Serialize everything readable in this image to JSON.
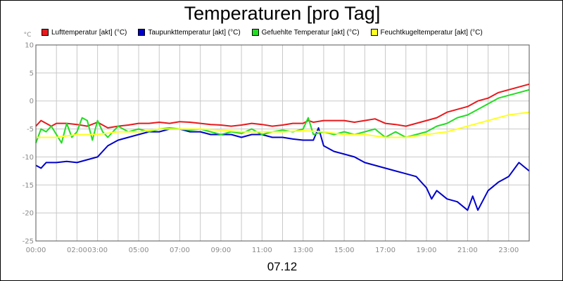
{
  "chart_data": {
    "type": "line",
    "title": "Temperaturen [pro Tag]",
    "date_label": "07.12",
    "y_unit": "°C",
    "ylim": [
      -25,
      10
    ],
    "yticks": [
      10,
      5,
      0,
      -5,
      -10,
      -15,
      -20,
      -25
    ],
    "xlim": [
      0,
      24
    ],
    "x_ticks": [
      {
        "label": "00:00",
        "x": 0
      },
      {
        "label": "02:00",
        "x": 2
      },
      {
        "label": "03:00",
        "x": 3
      },
      {
        "label": "05:00",
        "x": 5
      },
      {
        "label": "07:00",
        "x": 7
      },
      {
        "label": "09:00",
        "x": 9
      },
      {
        "label": "11:00",
        "x": 11
      },
      {
        "label": "13:00",
        "x": 13
      },
      {
        "label": "15:00",
        "x": 15
      },
      {
        "label": "17:00",
        "x": 17
      },
      {
        "label": "19:00",
        "x": 19
      },
      {
        "label": "21:00",
        "x": 21
      },
      {
        "label": "23:00",
        "x": 23
      }
    ],
    "grid": true,
    "legend": "top",
    "series": [
      {
        "name": "Lufttemperatur [akt] (°C)",
        "color": "#e8191c",
        "x": [
          0,
          0.25,
          0.5,
          0.75,
          1,
          1.5,
          2,
          2.5,
          3,
          3.5,
          4,
          4.5,
          5,
          5.5,
          6,
          6.5,
          7,
          7.5,
          8,
          8.5,
          9,
          9.5,
          10,
          10.5,
          11,
          11.5,
          12,
          12.5,
          13,
          13.25,
          13.5,
          14,
          14.5,
          15,
          15.5,
          16,
          16.5,
          17,
          17.5,
          18,
          18.5,
          19,
          19.5,
          20,
          20.5,
          21,
          21.5,
          22,
          22.5,
          23,
          23.5,
          24
        ],
        "values": [
          -4.5,
          -3.5,
          -4.0,
          -4.5,
          -4.0,
          -4.0,
          -4.2,
          -4.5,
          -3.8,
          -4.8,
          -4.5,
          -4.3,
          -4.0,
          -4.0,
          -3.8,
          -4.0,
          -3.7,
          -3.8,
          -4.0,
          -4.2,
          -4.3,
          -4.5,
          -4.3,
          -4.0,
          -4.2,
          -4.5,
          -4.3,
          -4.0,
          -4.0,
          -3.5,
          -3.8,
          -3.5,
          -3.5,
          -3.5,
          -3.8,
          -3.5,
          -3.2,
          -4.0,
          -4.2,
          -4.5,
          -4.0,
          -3.5,
          -3.0,
          -2.0,
          -1.5,
          -1.0,
          0.0,
          0.5,
          1.5,
          2.0,
          2.5,
          3.0
        ]
      },
      {
        "name": "Taupunkttemperatur [akt] (°C)",
        "color": "#0000cc",
        "x": [
          0,
          0.25,
          0.5,
          1,
          1.5,
          2,
          2.5,
          3,
          3.5,
          3.75,
          4,
          4.5,
          5,
          5.5,
          6,
          6.5,
          7,
          7.5,
          8,
          8.5,
          9,
          9.5,
          10,
          10.5,
          11,
          11.5,
          12,
          12.5,
          13,
          13.5,
          13.75,
          14,
          14.5,
          15,
          15.5,
          16,
          16.5,
          17,
          17.5,
          18,
          18.5,
          19,
          19.25,
          19.5,
          20,
          20.5,
          21,
          21.25,
          21.5,
          22,
          22.5,
          23,
          23.5,
          24
        ],
        "values": [
          -11.5,
          -12.0,
          -11.0,
          -11.0,
          -10.8,
          -11.0,
          -10.5,
          -10.0,
          -8.0,
          -7.5,
          -7.0,
          -6.5,
          -6.0,
          -5.5,
          -5.5,
          -5.0,
          -5.0,
          -5.5,
          -5.5,
          -6.0,
          -6.0,
          -6.0,
          -6.5,
          -6.0,
          -6.0,
          -6.5,
          -6.5,
          -6.8,
          -7.0,
          -7.0,
          -4.8,
          -8.0,
          -9.0,
          -9.5,
          -10.0,
          -11.0,
          -11.5,
          -12.0,
          -12.5,
          -13.0,
          -13.5,
          -15.5,
          -17.5,
          -16.0,
          -17.5,
          -18.0,
          -19.5,
          -17.0,
          -19.5,
          -16.0,
          -14.5,
          -13.5,
          -11.0,
          -12.5
        ]
      },
      {
        "name": "Gefuehlte Temperatur [akt] (°C)",
        "color": "#22dd22",
        "x": [
          0,
          0.25,
          0.5,
          0.75,
          1,
          1.25,
          1.5,
          1.75,
          2,
          2.25,
          2.5,
          2.75,
          3,
          3.25,
          3.5,
          4,
          4.5,
          5,
          5.5,
          6,
          6.5,
          7,
          7.5,
          8,
          8.5,
          9,
          9.5,
          10,
          10.5,
          11,
          11.5,
          12,
          12.5,
          13,
          13.25,
          13.5,
          14,
          14.5,
          15,
          15.5,
          16,
          16.5,
          17,
          17.5,
          18,
          18.5,
          19,
          19.5,
          20,
          20.5,
          21,
          21.5,
          22,
          22.5,
          23,
          23.5,
          24
        ],
        "values": [
          -7.5,
          -5.0,
          -5.5,
          -4.5,
          -6.0,
          -7.5,
          -4.0,
          -6.5,
          -5.5,
          -3.0,
          -3.5,
          -7.0,
          -3.5,
          -5.5,
          -6.5,
          -4.5,
          -5.5,
          -5.0,
          -5.5,
          -5.0,
          -4.8,
          -5.0,
          -5.2,
          -5.0,
          -5.5,
          -6.0,
          -5.5,
          -5.8,
          -5.0,
          -6.0,
          -5.5,
          -5.2,
          -5.5,
          -5.0,
          -3.0,
          -6.0,
          -5.5,
          -6.0,
          -5.5,
          -6.0,
          -5.5,
          -5.0,
          -6.5,
          -5.5,
          -6.5,
          -6.0,
          -5.5,
          -4.5,
          -4.0,
          -3.0,
          -2.5,
          -1.5,
          -0.5,
          0.5,
          1.0,
          1.5,
          2.0
        ]
      },
      {
        "name": "Feuchtkugeltemperatur [akt] (°C)",
        "color": "#ffff22",
        "x": [
          0,
          1,
          2,
          3,
          4,
          5,
          6,
          7,
          8,
          9,
          10,
          11,
          12,
          13,
          14,
          15,
          16,
          17,
          18,
          19,
          20,
          21,
          22,
          23,
          24
        ],
        "values": [
          -6.5,
          -6.5,
          -6.0,
          -6.0,
          -5.5,
          -5.5,
          -5.0,
          -5.0,
          -5.0,
          -5.2,
          -5.5,
          -5.5,
          -5.5,
          -5.3,
          -5.5,
          -6.0,
          -6.0,
          -6.5,
          -6.5,
          -6.0,
          -5.5,
          -4.5,
          -3.5,
          -2.5,
          -2.0
        ]
      }
    ]
  }
}
